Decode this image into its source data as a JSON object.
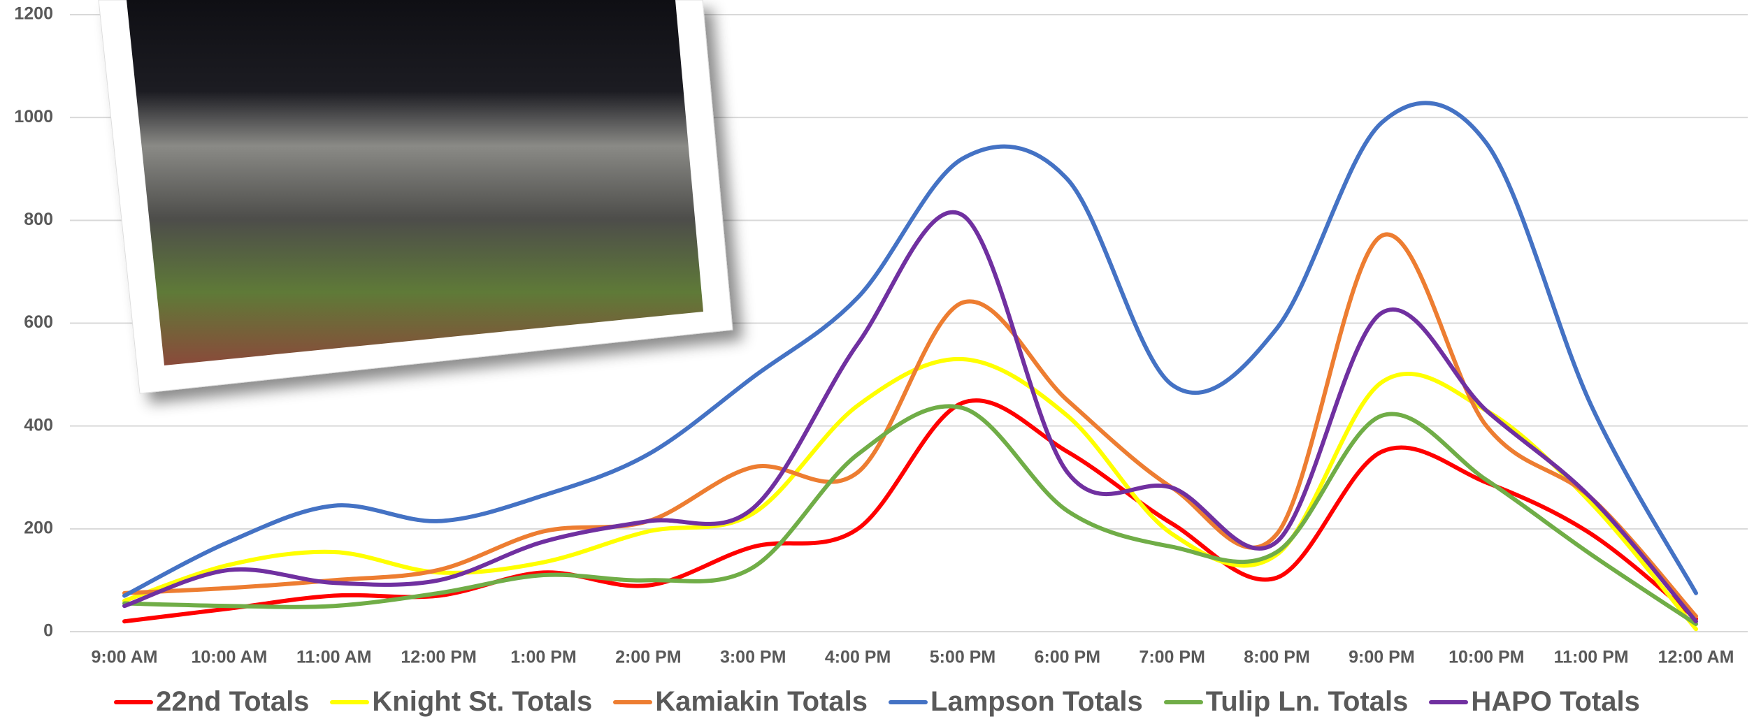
{
  "chart_data": {
    "type": "line",
    "categories": [
      "9:00 AM",
      "10:00 AM",
      "11:00 AM",
      "12:00 PM",
      "1:00 PM",
      "2:00 PM",
      "3:00 PM",
      "4:00 PM",
      "5:00 PM",
      "6:00 PM",
      "7:00 PM",
      "8:00 PM",
      "9:00 PM",
      "10:00 PM",
      "11:00 PM",
      "12:00 AM"
    ],
    "series": [
      {
        "name": "22nd Totals",
        "color": "#ff0000",
        "values": [
          20,
          45,
          70,
          70,
          115,
          90,
          165,
          200,
          445,
          350,
          210,
          105,
          350,
          290,
          190,
          25
        ]
      },
      {
        "name": "Knight St. Totals",
        "color": "#ffff00",
        "values": [
          60,
          130,
          155,
          115,
          135,
          195,
          230,
          440,
          530,
          420,
          190,
          150,
          485,
          430,
          250,
          5
        ]
      },
      {
        "name": "Kamiakin Totals",
        "color": "#ed7d31",
        "values": [
          75,
          85,
          100,
          120,
          195,
          215,
          320,
          310,
          640,
          450,
          280,
          190,
          770,
          400,
          260,
          30
        ]
      },
      {
        "name": "Lampson Totals",
        "color": "#4472c4",
        "values": [
          70,
          175,
          245,
          215,
          265,
          345,
          495,
          650,
          920,
          880,
          480,
          590,
          990,
          950,
          440,
          75
        ]
      },
      {
        "name": "Tulip Ln. Totals",
        "color": "#70ad47",
        "values": [
          55,
          50,
          50,
          75,
          110,
          100,
          125,
          345,
          435,
          235,
          165,
          155,
          420,
          295,
          150,
          15
        ]
      },
      {
        "name": "HAPO Totals",
        "color": "#7030a0",
        "values": [
          50,
          120,
          95,
          100,
          175,
          215,
          240,
          560,
          810,
          310,
          280,
          175,
          620,
          430,
          260,
          20
        ]
      }
    ],
    "ylim": [
      0,
      1200
    ],
    "yticks": [
      0,
      200,
      400,
      600,
      800,
      1000,
      1200
    ],
    "grid": true,
    "legend": "bottom"
  }
}
